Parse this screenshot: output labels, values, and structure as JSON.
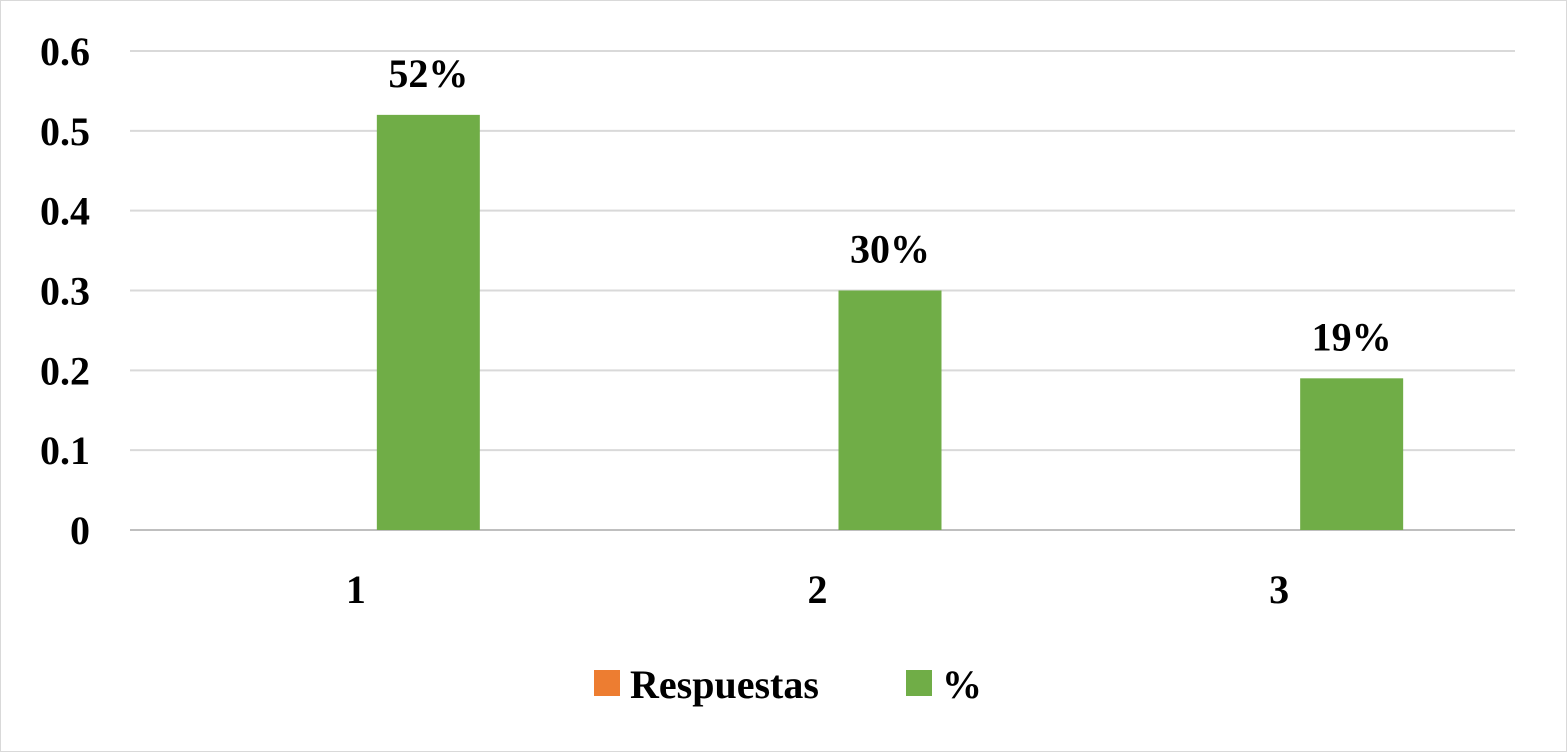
{
  "chart_data": {
    "type": "bar",
    "categories": [
      "1",
      "2",
      "3"
    ],
    "series": [
      {
        "name": "Respuestas",
        "color": "#ED7D31",
        "values": [
          null,
          null,
          null
        ]
      },
      {
        "name": "%",
        "color": "#70AD47",
        "values": [
          0.52,
          0.3,
          0.19
        ],
        "data_labels": [
          "52%",
          "30%",
          "19%"
        ]
      }
    ],
    "yticks": [
      "0",
      "0.1",
      "0.2",
      "0.3",
      "0.4",
      "0.5",
      "0.6"
    ],
    "ylim": [
      0,
      0.6
    ],
    "grid": true,
    "legend": "bottom"
  }
}
